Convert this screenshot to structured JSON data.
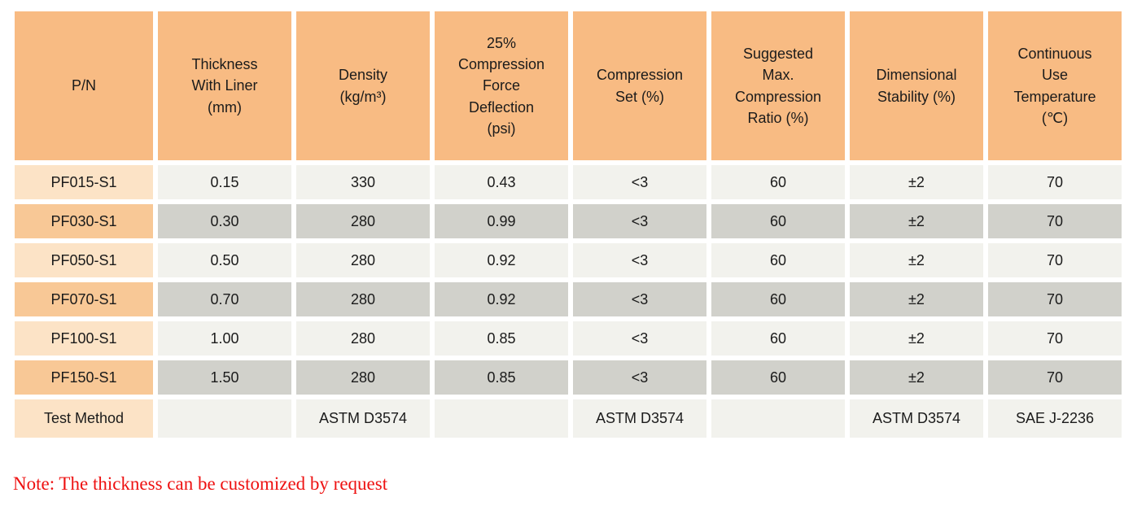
{
  "colors": {
    "header_bg": "#F8BB83",
    "pn_light_bg": "#FCE3C6",
    "pn_dark_bg": "#F8C896",
    "cell_light_bg": "#F2F2ED",
    "cell_dark_bg": "#D1D1CB",
    "note_red": "#EE1111",
    "text": "#1B1B1B"
  },
  "table": {
    "columns": [
      {
        "key": "pn",
        "label": "P/N"
      },
      {
        "key": "thickness-with-liner",
        "label": "Thickness\nWith Liner\n(mm)"
      },
      {
        "key": "density",
        "label": "Density\n(kg/m³)"
      },
      {
        "key": "compression-force-deflection",
        "label": "25%\nCompression\nForce\nDeflection\n(psi)"
      },
      {
        "key": "compression-set",
        "label": "Compression\nSet (%)"
      },
      {
        "key": "suggested-max-compression-ratio",
        "label": "Suggested\nMax.\nCompression\nRatio (%)"
      },
      {
        "key": "dimensional-stability",
        "label": "Dimensional\nStability (%)"
      },
      {
        "key": "continuous-use-temperature",
        "label": "Continuous\nUse\nTemperature\n(℃)"
      }
    ],
    "rows": [
      {
        "pn": "PF015-S1",
        "shade": "light",
        "values": [
          "0.15",
          "330",
          "0.43",
          "<3",
          "60",
          "±2",
          "70"
        ]
      },
      {
        "pn": "PF030-S1",
        "shade": "dark",
        "values": [
          "0.30",
          "280",
          "0.99",
          "<3",
          "60",
          "±2",
          "70"
        ]
      },
      {
        "pn": "PF050-S1",
        "shade": "light",
        "values": [
          "0.50",
          "280",
          "0.92",
          "<3",
          "60",
          "±2",
          "70"
        ]
      },
      {
        "pn": "PF070-S1",
        "shade": "dark",
        "values": [
          "0.70",
          "280",
          "0.92",
          "<3",
          "60",
          "±2",
          "70"
        ]
      },
      {
        "pn": "PF100-S1",
        "shade": "light",
        "values": [
          "1.00",
          "280",
          "0.85",
          "<3",
          "60",
          "±2",
          "70"
        ]
      },
      {
        "pn": "PF150-S1",
        "shade": "dark",
        "values": [
          "1.50",
          "280",
          "0.85",
          "<3",
          "60",
          "±2",
          "70"
        ]
      },
      {
        "pn": "Test Method",
        "shade": "test",
        "values": [
          "",
          "ASTM D3574",
          "",
          "ASTM D3574",
          "",
          "ASTM D3574",
          "SAE J-2236"
        ]
      }
    ]
  },
  "note": "Note: The thickness can be customized by request"
}
